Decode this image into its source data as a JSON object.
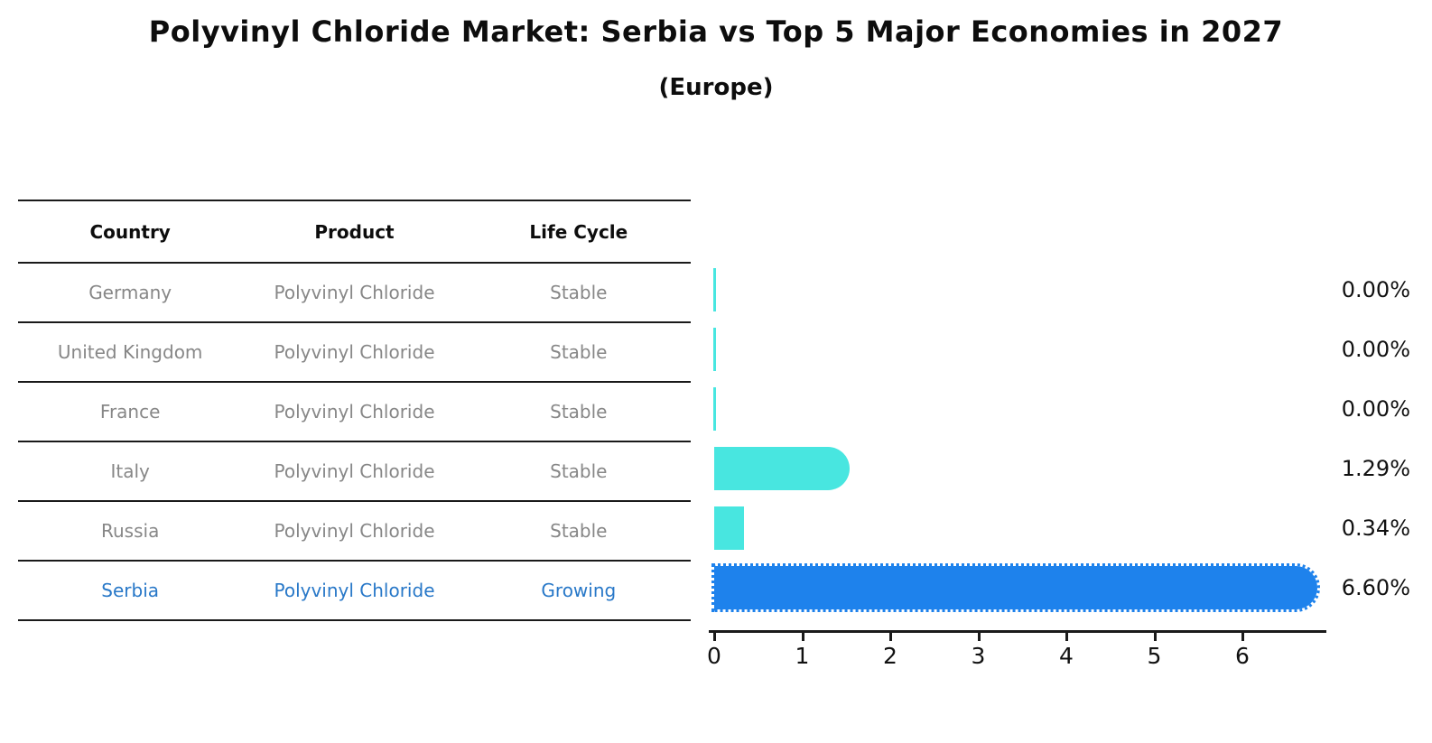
{
  "title": "Polyvinyl Chloride Market: Serbia vs Top 5 Major Economies in 2027",
  "subtitle": "(Europe)",
  "table": {
    "headers": [
      "Country",
      "Product",
      "Life Cycle"
    ],
    "rows": [
      {
        "country": "Germany",
        "product": "Polyvinyl Chloride",
        "life_cycle": "Stable",
        "highlight": false
      },
      {
        "country": "United Kingdom",
        "product": "Polyvinyl Chloride",
        "life_cycle": "Stable",
        "highlight": false
      },
      {
        "country": "France",
        "product": "Polyvinyl Chloride",
        "life_cycle": "Stable",
        "highlight": false
      },
      {
        "country": "Italy",
        "product": "Polyvinyl Chloride",
        "life_cycle": "Stable",
        "highlight": false
      },
      {
        "country": "Russia",
        "product": "Polyvinyl Chloride",
        "life_cycle": "Stable",
        "highlight": false
      },
      {
        "country": "Serbia",
        "product": "Polyvinyl Chloride",
        "life_cycle": "Growing",
        "highlight": true
      }
    ]
  },
  "chart_data": {
    "type": "bar",
    "orientation": "horizontal",
    "title": "Polyvinyl Chloride Market: Serbia vs Top 5 Major Economies in 2027 (Europe)",
    "categories": [
      "Germany",
      "United Kingdom",
      "France",
      "Italy",
      "Russia",
      "Serbia"
    ],
    "values": [
      0.0,
      0.0,
      0.0,
      1.29,
      0.34,
      6.6
    ],
    "value_labels": [
      "0.00%",
      "0.00%",
      "0.00%",
      "1.29%",
      "0.34%",
      "6.60%"
    ],
    "x_ticks": [
      0,
      1,
      2,
      3,
      4,
      5,
      6
    ],
    "xlim": [
      0,
      6.93
    ],
    "xlabel": "",
    "ylabel": "",
    "grid": false,
    "legend": "none",
    "highlight_category": "Serbia",
    "colors": {
      "bar_default": "#48e6e0",
      "bar_highlight": "#1e82ec",
      "highlight_text": "#2878c8",
      "table_text": "#878787",
      "axis": "#1a1a1a",
      "label_text": "#111111"
    }
  }
}
